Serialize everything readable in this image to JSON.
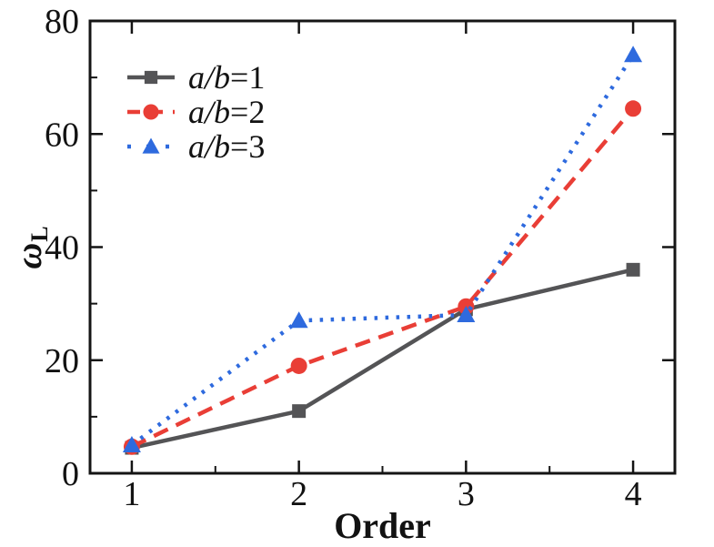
{
  "figure": {
    "background": "#ffffff",
    "xlabel": "Order",
    "ylabel_omega": "ω",
    "ylabel_sub": "L"
  },
  "chart_data": {
    "type": "line",
    "title": "",
    "xlabel": "Order",
    "ylabel": "ω_L",
    "x": [
      1,
      2,
      3,
      4
    ],
    "series": [
      {
        "name": "a/b=1",
        "label_italic": "a/b",
        "label_rest": "=1",
        "values": [
          4.5,
          11,
          29,
          36
        ],
        "color": "#545456",
        "line": "solid",
        "marker": "square"
      },
      {
        "name": "a/b=2",
        "label_italic": "a/b",
        "label_rest": "=2",
        "values": [
          4.7,
          19,
          29.5,
          64.5
        ],
        "color": "#e93e36",
        "line": "dashed",
        "marker": "circle"
      },
      {
        "name": "a/b=3",
        "label_italic": "a/b",
        "label_rest": "=3",
        "values": [
          5,
          27,
          28,
          74
        ],
        "color": "#2e6ade",
        "line": "dotted",
        "marker": "triangle"
      }
    ],
    "x_ticks": [
      1,
      2,
      3,
      4
    ],
    "x_minor_ticks": [
      1.5,
      2.5,
      3.5
    ],
    "y_ticks": [
      0,
      20,
      40,
      60,
      80
    ],
    "y_minor_ticks": [
      10,
      30,
      50,
      70
    ],
    "xlim": [
      0.75,
      4.25
    ],
    "ylim": [
      0,
      80
    ],
    "grid": false,
    "legend_position": "upper-left-inside",
    "axis_color": "#141414"
  }
}
